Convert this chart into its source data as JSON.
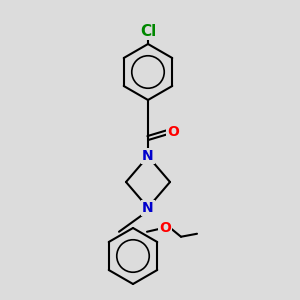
{
  "bg_color": "#dcdcdc",
  "bond_color": "#000000",
  "bond_width": 1.5,
  "atom_colors": {
    "Cl": "#008800",
    "O": "#ff0000",
    "N": "#0000cc"
  },
  "font_size": 10,
  "fig_size": [
    3.0,
    3.0
  ],
  "dpi": 100
}
